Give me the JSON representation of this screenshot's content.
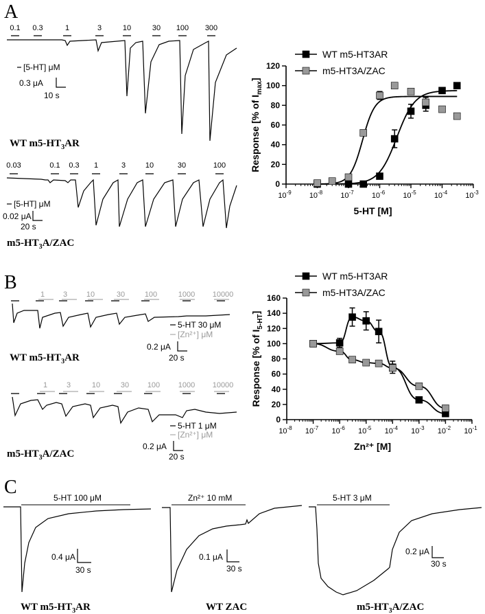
{
  "panels": {
    "a": {
      "letter": "A",
      "wt_label": "WT m5-HT",
      "wt_label_sub": "3",
      "wt_label_end": "AR",
      "zac_label": "m5-HT",
      "zac_label_sub": "3",
      "zac_label_end": "A/ZAC",
      "wt_conc": [
        "0.1",
        "0.3",
        "1",
        "3",
        "10",
        "30",
        "100",
        "300"
      ],
      "zac_conc": [
        "0.03",
        "0.1",
        "0.3",
        "1",
        "3",
        "10",
        "30",
        "100"
      ],
      "wt_legend": "[5-HT] μM",
      "zac_legend": "[5-HT] μM",
      "wt_scale_amp": "0.3 μA",
      "wt_scale_time": "10 s",
      "zac_scale_amp": "0.02 μA",
      "zac_scale_time": "20 s"
    },
    "b": {
      "letter": "B",
      "wt_label": "WT m5-HT",
      "wt_label_sub": "3",
      "wt_label_end": "AR",
      "zac_label": "m5-HT",
      "zac_label_sub": "3",
      "zac_label_end": "A/ZAC",
      "zn_conc": [
        "1",
        "3",
        "10",
        "30",
        "100",
        "1000",
        "10000"
      ],
      "wt_legend_5ht": "5-HT 30 μM",
      "wt_legend_zn": "[Zn²⁺] μM",
      "zac_legend_5ht": "5-HT 1 μM",
      "zac_legend_zn": "[Zn²⁺] μM",
      "wt_scale_amp": "0.2 μA",
      "wt_scale_time": "20 s",
      "zac_scale_amp": "0.2 μA",
      "zac_scale_time": "20 s"
    },
    "c": {
      "letter": "C",
      "traces": [
        {
          "label": "WT m5-HT",
          "sub": "3",
          "end": "AR",
          "drug": "5-HT 100 μM",
          "scale_amp": "0.4 μA",
          "scale_time": "30 s"
        },
        {
          "label": "WT ZAC",
          "sub": "",
          "end": "",
          "drug": "Zn²⁺ 10 mM",
          "scale_amp": "0.1 μA",
          "scale_time": "30 s"
        },
        {
          "label": "m5-HT",
          "sub": "3",
          "end": "A/ZAC",
          "drug": "5-HT 3 μM",
          "scale_amp": "0.2 μA",
          "scale_time": "30 s"
        }
      ]
    }
  },
  "chart_data": [
    {
      "type": "scatter",
      "ylabel_main": "Response [% of I",
      "ylabel_sub": "max",
      "ylabel_end": "]",
      "xlabel": "5-HT [M]",
      "x_scale": "log",
      "xlim_exp": [
        -9,
        -3
      ],
      "x_ticks": [
        {
          "b": "10",
          "e": "-9"
        },
        {
          "b": "10",
          "e": "-8"
        },
        {
          "b": "10",
          "e": "-7"
        },
        {
          "b": "10",
          "e": "-6"
        },
        {
          "b": "10",
          "e": "-5"
        },
        {
          "b": "10",
          "e": "-4"
        },
        {
          "b": "10",
          "e": "-3"
        }
      ],
      "ylim": [
        0,
        120
      ],
      "y_ticks": [
        "0",
        "20",
        "40",
        "60",
        "80",
        "100",
        "120"
      ],
      "legend_position": "top-left",
      "series": [
        {
          "name": "WT m5-HT3AR",
          "color": "#000000",
          "ec50_log": -5.45,
          "hill": 1.5,
          "top": 95,
          "points": [
            {
              "x": 1e-08,
              "y": 0
            },
            {
              "x": 1e-07,
              "y": 0
            },
            {
              "x": 3e-07,
              "y": 0
            },
            {
              "x": 1e-06,
              "y": 8
            },
            {
              "x": 3e-06,
              "y": 46,
              "err": 9
            },
            {
              "x": 1e-05,
              "y": 74,
              "err": 7
            },
            {
              "x": 3e-05,
              "y": 80,
              "err": 6
            },
            {
              "x": 0.0001,
              "y": 95
            },
            {
              "x": 0.0003,
              "y": 100
            }
          ]
        },
        {
          "name": "m5-HT3A/ZAC",
          "color": "#999999",
          "ec50_log": -6.55,
          "hill": 2.2,
          "top": 89,
          "points": [
            {
              "x": 1e-08,
              "y": 1
            },
            {
              "x": 3e-08,
              "y": 3
            },
            {
              "x": 1e-07,
              "y": 7
            },
            {
              "x": 3e-07,
              "y": 52
            },
            {
              "x": 1e-06,
              "y": 90,
              "err": 4
            },
            {
              "x": 3e-06,
              "y": 100
            },
            {
              "x": 1e-05,
              "y": 94
            },
            {
              "x": 3e-05,
              "y": 83,
              "err": 5
            },
            {
              "x": 0.0001,
              "y": 76
            },
            {
              "x": 0.0003,
              "y": 69
            }
          ]
        }
      ]
    },
    {
      "type": "scatter",
      "ylabel_main": "Response [% of I",
      "ylabel_sub": "5-HT",
      "ylabel_end": "]",
      "xlabel": "Zn²⁺ [M]",
      "x_scale": "log",
      "xlim_exp": [
        -8,
        -1
      ],
      "x_ticks": [
        {
          "b": "10",
          "e": "-8"
        },
        {
          "b": "10",
          "e": "-7"
        },
        {
          "b": "10",
          "e": "-6"
        },
        {
          "b": "10",
          "e": "-5"
        },
        {
          "b": "10",
          "e": "-4"
        },
        {
          "b": "10",
          "e": "-3"
        },
        {
          "b": "10",
          "e": "-2"
        },
        {
          "b": "10",
          "e": "-1"
        }
      ],
      "ylim": [
        0,
        160
      ],
      "y_ticks": [
        "0",
        "20",
        "40",
        "60",
        "80",
        "100",
        "120",
        "140",
        "160"
      ],
      "legend_position": "top-right",
      "series": [
        {
          "name": "WT m5-HT3AR",
          "color": "#000000",
          "points": [
            {
              "x": 1e-07,
              "y": 100
            },
            {
              "x": 1e-06,
              "y": 101,
              "err": 6
            },
            {
              "x": 3e-06,
              "y": 135,
              "err": 12
            },
            {
              "x": 1e-05,
              "y": 130,
              "err": 12
            },
            {
              "x": 3e-05,
              "y": 116,
              "err": 15
            },
            {
              "x": 0.0001,
              "y": 69,
              "err": 8
            },
            {
              "x": 0.001,
              "y": 26,
              "err": 4
            },
            {
              "x": 0.01,
              "y": 8
            }
          ]
        },
        {
          "name": "m5-HT3A/ZAC",
          "color": "#999999",
          "points": [
            {
              "x": 1e-07,
              "y": 100
            },
            {
              "x": 1e-06,
              "y": 90
            },
            {
              "x": 3e-06,
              "y": 79
            },
            {
              "x": 1e-05,
              "y": 75
            },
            {
              "x": 3e-05,
              "y": 74
            },
            {
              "x": 0.0001,
              "y": 68
            },
            {
              "x": 0.001,
              "y": 44
            },
            {
              "x": 0.01,
              "y": 15
            }
          ]
        }
      ]
    }
  ]
}
